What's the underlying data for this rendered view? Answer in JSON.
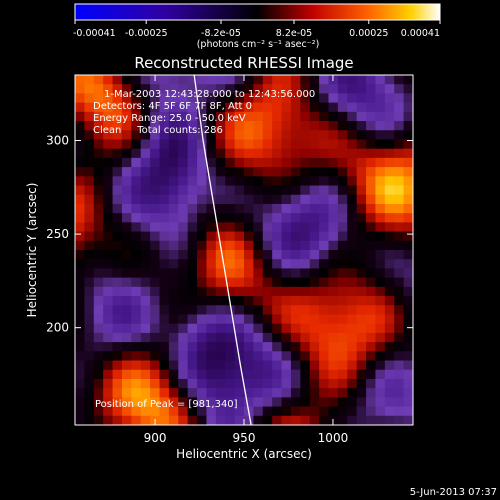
{
  "chart_data": {
    "type": "heatmap",
    "title": "Reconstructed RHESSI Image",
    "xlabel": "Heliocentric X (arcsec)",
    "ylabel": "Heliocentric Y (arcsec)",
    "xlim": [
      855,
      1045
    ],
    "ylim": [
      148,
      335
    ],
    "xticks": [
      900,
      950,
      1000
    ],
    "yticks": [
      200,
      250,
      300
    ],
    "colorbar": {
      "ticks": [
        -0.00041,
        -0.00025,
        -8.2e-05,
        8.2e-05,
        0.00025,
        0.00041
      ],
      "tick_labels": [
        "-0.00041",
        "-0.00025",
        "-8.2e-05",
        "8.2e-05",
        "0.00025",
        "0.00041"
      ],
      "units_label": "(photons cm⁻² s⁻¹ asec⁻²)",
      "range": [
        -0.00041,
        0.00041
      ]
    },
    "annotations": [
      "1-Mar-2003 12:43:28.000 to 12:43:56.000",
      "Detectors: 4F 5F 6F 7F 8F, Att 0",
      "Energy Range: 25.0 - 50.0 keV",
      "Clean     Total counts: 286",
      "Position of Peak = [981,340]"
    ],
    "peak": [
      981,
      340
    ],
    "limb_curve": {
      "x": [
        922,
        927,
        934,
        941,
        948,
        954
      ],
      "y": [
        335,
        300,
        260,
        220,
        180,
        148
      ]
    },
    "footer": "5-Jun-2013 07:37"
  }
}
